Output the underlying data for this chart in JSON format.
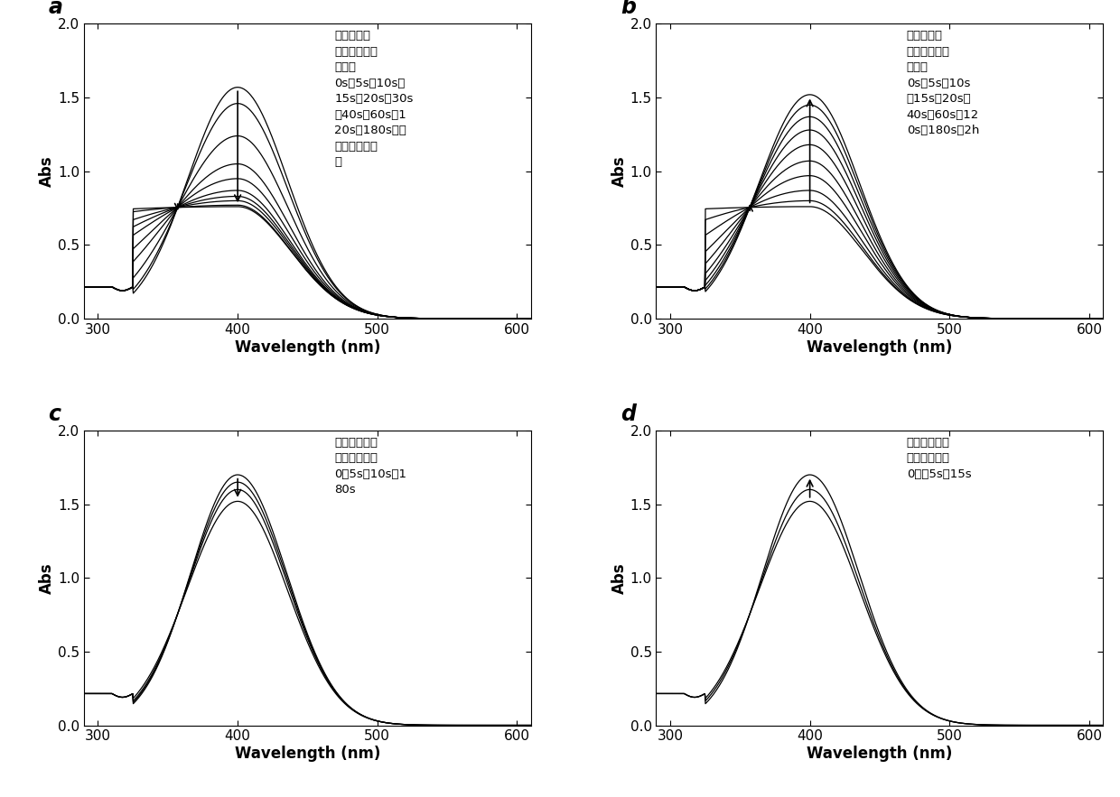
{
  "xlim": [
    290,
    610
  ],
  "ylim": [
    0.0,
    2.0
  ],
  "xticks": [
    300,
    400,
    500,
    600
  ],
  "yticks": [
    0.0,
    0.5,
    1.0,
    1.5,
    2.0
  ],
  "xlabel": "Wavelength (nm)",
  "ylabel": "Abs",
  "annotation_a": "中间箭头方\n向，从上向下\n依次为\n0s、5s、10s、\n15s、20s、30s\n、40s、60s、1\n20s、180s，最\n后三组数据重\n合",
  "annotation_b": "中间箭头方\n向，从下向上\n依次为\n0s、5s、10s\n、15s、20s、\n40s、60s、12\n0s、180s、2h",
  "annotation_c": "箭头方向，从\n上向下依次为\n0、5s、10s、1\n80s",
  "annotation_d": "箭头方向，从\n下向上依次为\n0、、5s、15s",
  "peaks_a": [
    1.57,
    1.46,
    1.24,
    1.05,
    0.95,
    0.87,
    0.83,
    0.8,
    0.77,
    0.76
  ],
  "peaks_b": [
    0.76,
    0.8,
    0.87,
    0.97,
    1.07,
    1.18,
    1.28,
    1.37,
    1.45,
    1.52
  ],
  "peaks_c": [
    1.7,
    1.65,
    1.6,
    1.52
  ],
  "peaks_d": [
    1.52,
    1.6,
    1.7
  ],
  "isosbestic_wl": 357,
  "isosbestic_val": 0.755,
  "peak_wl": 400,
  "base_val": 0.215,
  "dip_wl": 325,
  "dip_depth": 0.025
}
